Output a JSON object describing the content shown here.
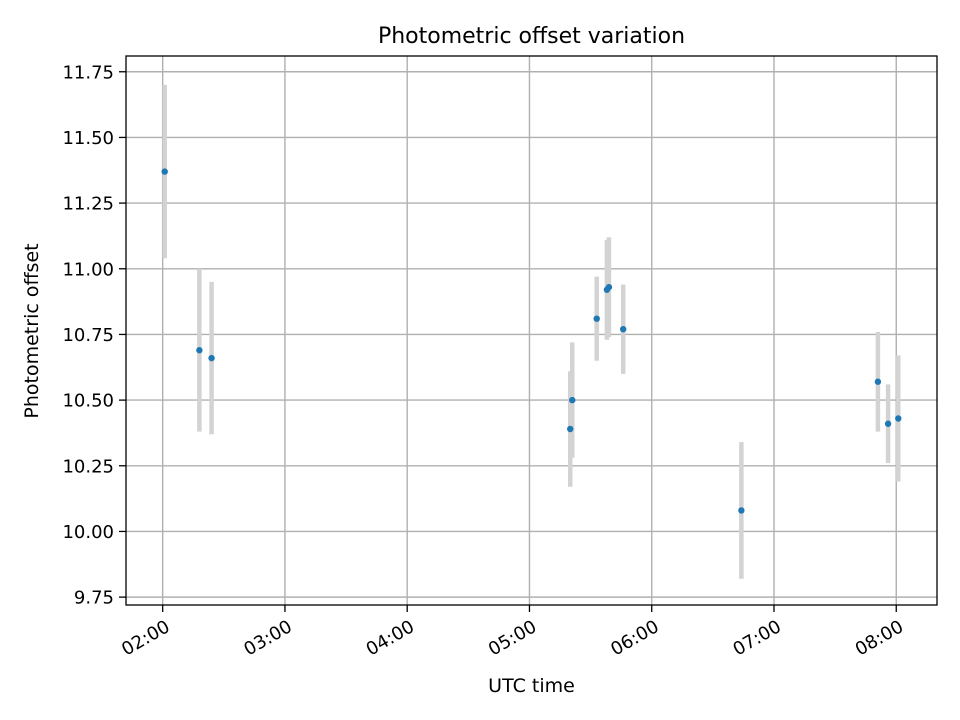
{
  "chart_data": {
    "type": "scatter",
    "title": "Photometric offset variation",
    "xlabel": "UTC time",
    "ylabel": "Photometric offset",
    "xlim": [
      "01:42",
      "08:20"
    ],
    "ylim": [
      9.72,
      11.81
    ],
    "x_ticks": [
      "02:00",
      "03:00",
      "04:00",
      "05:00",
      "06:00",
      "07:00",
      "08:00"
    ],
    "y_ticks": [
      "9.75",
      "10.00",
      "10.25",
      "10.50",
      "10.75",
      "11.00",
      "11.25",
      "11.50",
      "11.75"
    ],
    "grid": true,
    "series": [
      {
        "x": [
          "02:01",
          "02:18",
          "02:24",
          "05:20",
          "05:21",
          "05:33",
          "05:38",
          "05:39",
          "05:46",
          "06:44",
          "07:51",
          "07:56",
          "08:01"
        ],
        "y": [
          11.37,
          10.69,
          10.66,
          10.39,
          10.5,
          10.81,
          10.92,
          10.93,
          10.77,
          10.08,
          10.57,
          10.41,
          10.43
        ],
        "error": [
          0.33,
          0.31,
          0.29,
          0.22,
          0.22,
          0.16,
          0.19,
          0.19,
          0.17,
          0.26,
          0.19,
          0.15,
          0.24
        ]
      }
    ],
    "colors": {
      "marker": "#1f77b4",
      "errorbar": "#d3d3d3",
      "grid": "#b0b0b0"
    }
  }
}
